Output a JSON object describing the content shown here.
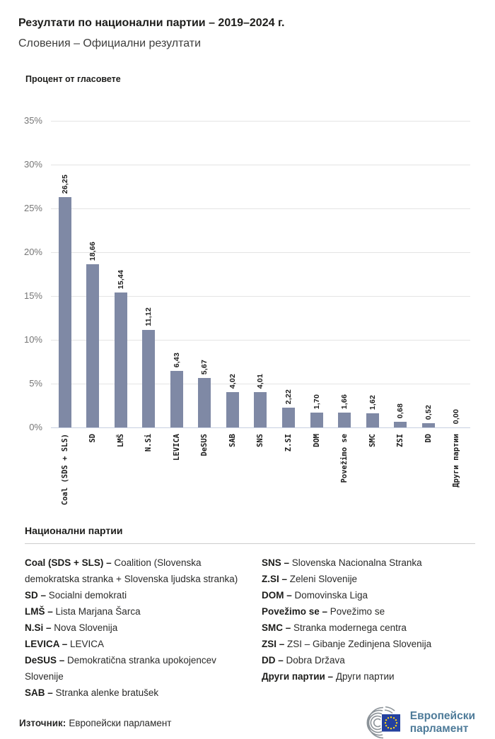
{
  "header": {
    "title": "Резултати по национални партии – 2019–2024 г.",
    "subtitle": "Словения – Официални резултати"
  },
  "chart_data": {
    "type": "bar",
    "title": "Процент от гласовете",
    "categories": [
      "Coal (SDS + SLS)",
      "SD",
      "LMŠ",
      "N.Si",
      "LEVICA",
      "DeSUS",
      "SAB",
      "SNS",
      "Z.SI",
      "DOM",
      "Povežimo se",
      "SMC",
      "ZSI",
      "DD",
      "Други партии"
    ],
    "values": [
      26.25,
      18.66,
      15.44,
      11.12,
      6.43,
      5.67,
      4.02,
      4.01,
      2.22,
      1.7,
      1.66,
      1.62,
      0.68,
      0.52,
      0.0
    ],
    "value_labels": [
      "26,25",
      "18,66",
      "15,44",
      "11,12",
      "6,43",
      "5,67",
      "4,02",
      "4,01",
      "2,22",
      "1,70",
      "1,66",
      "1,62",
      "0,68",
      "0,52",
      "0,00"
    ],
    "xlabel": "",
    "ylabel": "Процент от гласовете",
    "ylim": [
      0,
      35
    ],
    "y_ticks": [
      "35%",
      "30%",
      "25%",
      "20%",
      "15%",
      "10%",
      "5%",
      "0%"
    ],
    "grid": true,
    "legend_position": "none",
    "bar_color": "#7f89a5",
    "baseline_color": "#c7cfe0",
    "gridline_color": "#e4e4e4"
  },
  "legend": {
    "title": "Национални партии",
    "columns": [
      [
        {
          "term": "Coal (SDS + SLS) –",
          "desc": "Coalition (Slovenska demokratska stranka + Slovenska ljudska stranka)"
        },
        {
          "term": "SD –",
          "desc": "Socialni demokrati"
        },
        {
          "term": "LMŠ –",
          "desc": "Lista Marjana Šarca"
        },
        {
          "term": "N.Si –",
          "desc": "Nova Slovenija"
        },
        {
          "term": "LEVICA –",
          "desc": "LEVICA"
        },
        {
          "term": "DeSUS –",
          "desc": "Demokratična stranka upokojencev Slovenije"
        },
        {
          "term": "SAB –",
          "desc": "Stranka alenke bratušek"
        }
      ],
      [
        {
          "term": "SNS –",
          "desc": "Slovenska Nacionalna Stranka"
        },
        {
          "term": "Z.SI –",
          "desc": "Zeleni Slovenije"
        },
        {
          "term": "DOM –",
          "desc": "Domovinska Liga"
        },
        {
          "term": "Povežimo se –",
          "desc": "Povežimo se"
        },
        {
          "term": "SMC –",
          "desc": "Stranka modernega centra"
        },
        {
          "term": "ZSI –",
          "desc": "ZSI – Gibanje Zedinjena Slovenija"
        },
        {
          "term": "DD –",
          "desc": "Dobra Država"
        },
        {
          "term": "Други партии –",
          "desc": "Други партии"
        }
      ]
    ]
  },
  "footer": {
    "source_label": "Източник:",
    "source_value": "Европейски парламент",
    "logo_line1": "Европейски",
    "logo_line2": "парламент"
  },
  "colors": {
    "bar": "#7f89a5",
    "logo_blue": "#24419f",
    "logo_star": "#ffd617",
    "logo_text": "#4e7b99",
    "logo_arcs": "#8b9298"
  }
}
